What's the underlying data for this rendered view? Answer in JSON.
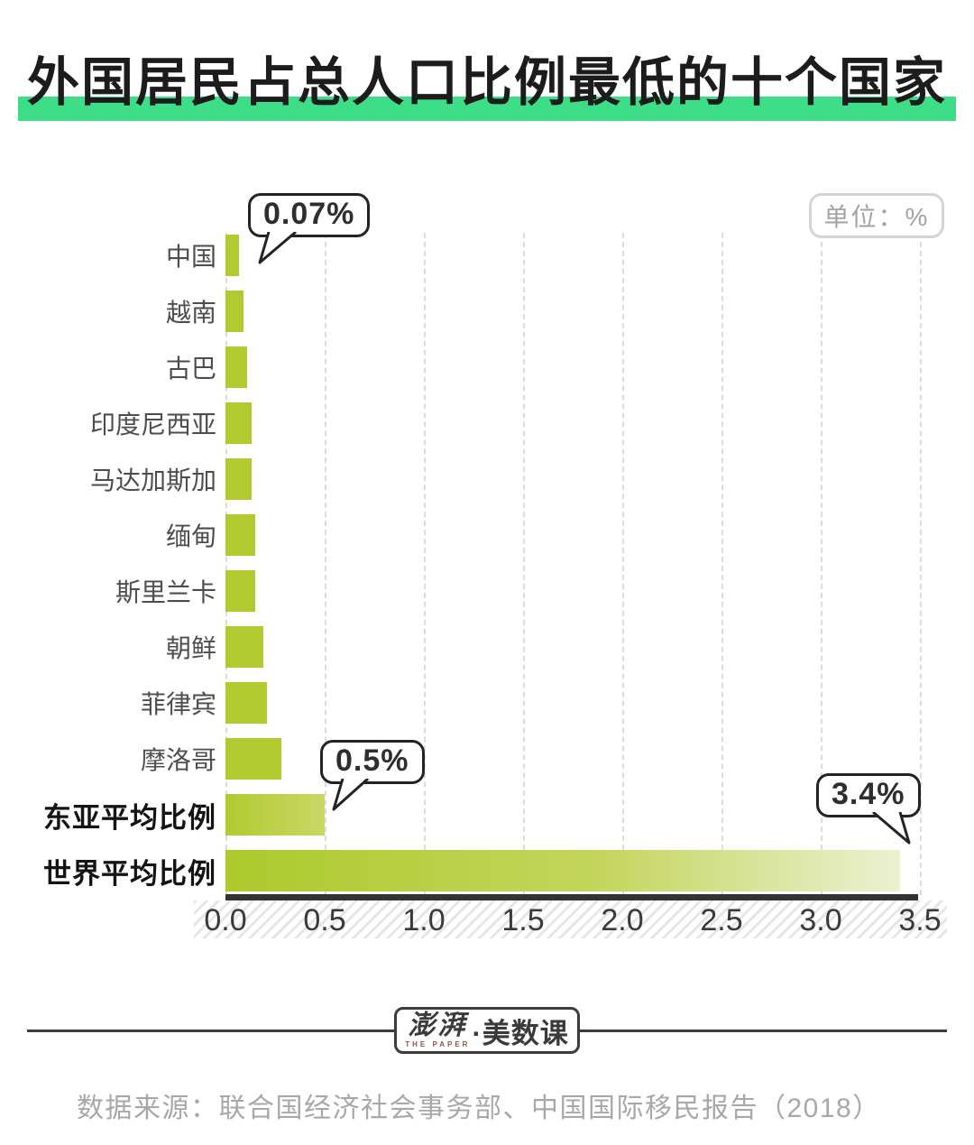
{
  "title": "外国居民占总人口比例最低的十个国家",
  "unit_badge": "单位：%",
  "chart_data": {
    "type": "bar",
    "orientation": "horizontal",
    "title": "外国居民占总人口比例最低的十个国家",
    "unit": "%",
    "categories": [
      "中国",
      "越南",
      "古巴",
      "印度尼西亚",
      "马达加斯加",
      "缅甸",
      "斯里兰卡",
      "朝鲜",
      "菲律宾",
      "摩洛哥",
      "东亚平均比例",
      "世界平均比例"
    ],
    "values": [
      0.07,
      0.09,
      0.11,
      0.13,
      0.13,
      0.15,
      0.15,
      0.19,
      0.21,
      0.28,
      0.5,
      3.4
    ],
    "emphasized_categories": [
      "东亚平均比例",
      "世界平均比例"
    ],
    "annotations": [
      {
        "category": "中国",
        "label": "0.07%"
      },
      {
        "category": "东亚平均比例",
        "label": "0.5%"
      },
      {
        "category": "世界平均比例",
        "label": "3.4%"
      }
    ],
    "x_ticks": [
      "0.0",
      "0.5",
      "1.0",
      "1.5",
      "2.0",
      "2.5",
      "3.0",
      "3.5"
    ],
    "xlim": [
      0,
      3.5
    ],
    "grid": "dashed-vertical",
    "legend": "none",
    "bar_color": "#b1ca30",
    "bar_fade_color": "#ecf1d2"
  },
  "footer": {
    "logo_cn_main": "澎湃",
    "logo_en": "THE PAPER",
    "logo_rest": "·美数课",
    "source": "数据来源：联合国经济社会事务部、中国国际移民报告（2018）"
  },
  "colors": {
    "title_highlight": "#3edd87",
    "bar": "#b1ca30",
    "axis": "#333333",
    "label": "#4d4d4d",
    "emphasis_label": "#141414",
    "muted_text": "#a8a8a8"
  }
}
